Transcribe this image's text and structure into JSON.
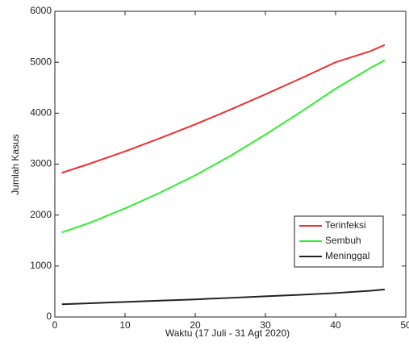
{
  "chart_data": {
    "type": "line",
    "x_label": "Waktu (17 Juli - 31 Agt 2020)",
    "y_label": "Jumlah Kasus",
    "x": [
      1,
      5,
      10,
      15,
      20,
      25,
      30,
      35,
      40,
      45,
      47
    ],
    "series": [
      {
        "name": "Terinfeksi",
        "color": "#f03030",
        "values": [
          2830,
          3010,
          3250,
          3510,
          3780,
          4070,
          4370,
          4680,
          5000,
          5220,
          5340
        ]
      },
      {
        "name": "Sembuh",
        "color": "#30ee30",
        "values": [
          1660,
          1850,
          2130,
          2440,
          2780,
          3160,
          3580,
          4020,
          4480,
          4890,
          5040
        ]
      },
      {
        "name": "Meninggal",
        "color": "#222222",
        "values": [
          250,
          270,
          295,
          320,
          345,
          375,
          405,
          435,
          470,
          515,
          540
        ]
      }
    ],
    "xlim": [
      0,
      50
    ],
    "xticks": [
      0,
      10,
      20,
      30,
      40,
      50
    ],
    "ylim": [
      0,
      6000
    ],
    "yticks": [
      0,
      1000,
      2000,
      3000,
      4000,
      5000,
      6000
    ],
    "legend": "lower-right",
    "grid": false
  }
}
